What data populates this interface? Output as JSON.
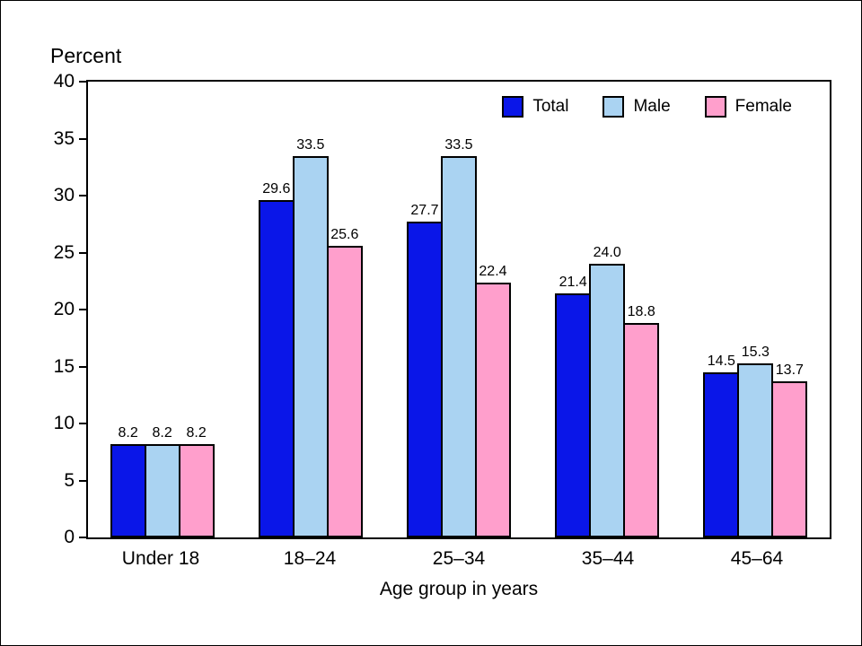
{
  "frame": {
    "background": "#ffffff",
    "border_color": "#000000"
  },
  "chart_data": {
    "type": "bar",
    "title": "",
    "ylabel": "Percent",
    "xlabel": "Age group in years",
    "ylim": [
      0,
      40
    ],
    "yticks": [
      0,
      5,
      10,
      15,
      20,
      25,
      30,
      35,
      40
    ],
    "grid": false,
    "legend_position": "top-right-inside",
    "categories": [
      "Under 18",
      "18–24",
      "25–34",
      "35–44",
      "45–64"
    ],
    "series": [
      {
        "name": "Total",
        "color": "#0a16e8",
        "values": [
          8.2,
          29.6,
          27.7,
          21.4,
          14.5
        ]
      },
      {
        "name": "Male",
        "color": "#aad3f2",
        "values": [
          8.2,
          33.5,
          33.5,
          24.0,
          15.3
        ]
      },
      {
        "name": "Female",
        "color": "#ff9fcc",
        "values": [
          8.2,
          25.6,
          22.4,
          18.8,
          13.7
        ]
      }
    ]
  }
}
